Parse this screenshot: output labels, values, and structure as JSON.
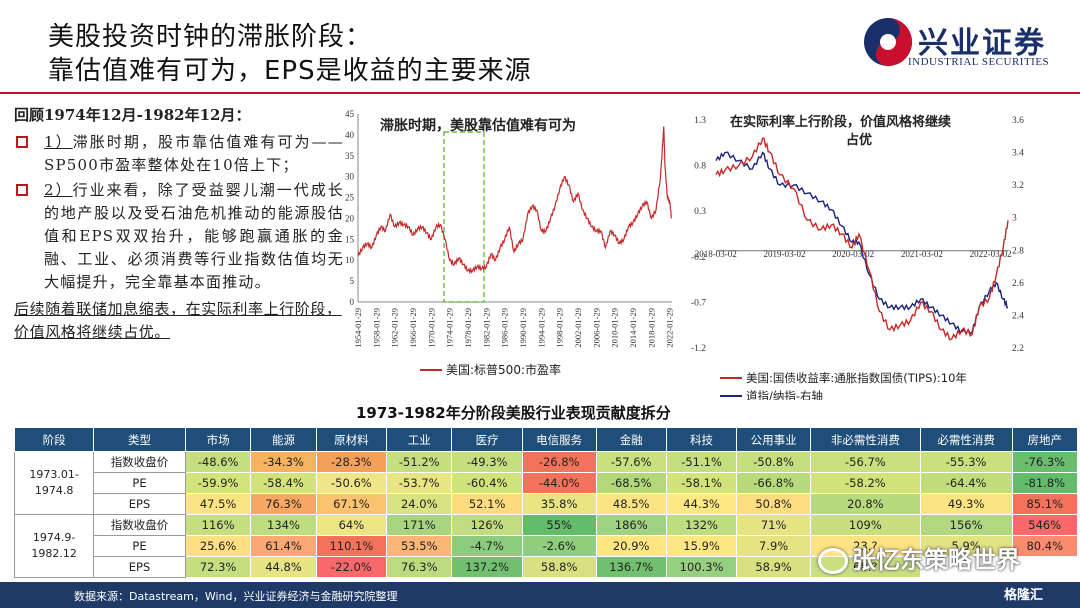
{
  "title": {
    "line1": "美股投资时钟的滞胀阶段：",
    "line2": "靠估值难有可为，EPS是收益的主要来源"
  },
  "logo": {
    "cn": "兴业证券",
    "en": "INDUSTRIAL SECURITIES"
  },
  "left": {
    "heading": "回顾1974年12月-1982年12月：",
    "bullets": [
      {
        "num": "1）",
        "text": "滞胀时期，股市靠估值难有可为——SP500市盈率整体处在10倍上下；"
      },
      {
        "num": "2）",
        "text": "行业来看，除了受益婴儿潮一代成长的地产股以及受石油危机推动的能源股估值和EPS双双抬升，能够跑赢通胀的金融、工业、必须消费等行业指数估值均无大幅提升，完全靠基本面推动。"
      }
    ],
    "followup": "后续随着联储加息缩表，在实际利率上行阶段，价值风格将继续占优。"
  },
  "chart1_text": {
    "annotation": "滞胀时期，美股靠估值难有可为",
    "legend": "美国:标普500:市盈率"
  },
  "chart2_text": {
    "annotation_l1": "在实际利率上行阶段，价值风格将继续",
    "annotation_l2": "占优",
    "legend1": "美国:国债收益率:通胀指数国债(TIPS):10年",
    "legend2": "道指/纳指-右轴"
  },
  "chart_data": [
    {
      "type": "line",
      "title": "",
      "series": [
        {
          "name": "美国:标普500:市盈率",
          "color": "#c62828"
        }
      ],
      "x_ticks": [
        "1954-01-29",
        "1958-01-29",
        "1962-01-29",
        "1966-01-29",
        "1970-01-29",
        "1974-01-29",
        "1978-01-29",
        "1982-01-29",
        "1986-01-29",
        "1990-01-29",
        "1994-01-29",
        "1998-01-29",
        "2002-01-29",
        "2006-01-29",
        "2010-01-29",
        "2014-01-29",
        "2018-01-29",
        "2022-01-29"
      ],
      "y_ticks": [
        "0",
        "5",
        "10",
        "15",
        "20",
        "25",
        "30",
        "35",
        "40",
        "45"
      ],
      "ylim": [
        0,
        45
      ],
      "highlight_range": [
        "1974-12",
        "1982-12"
      ],
      "points": [
        [
          1954,
          11
        ],
        [
          1955,
          13
        ],
        [
          1956,
          14
        ],
        [
          1957,
          13
        ],
        [
          1958,
          16
        ],
        [
          1959,
          18
        ],
        [
          1960,
          17
        ],
        [
          1961,
          21
        ],
        [
          1962,
          18
        ],
        [
          1963,
          19
        ],
        [
          1964,
          18.5
        ],
        [
          1965,
          18
        ],
        [
          1966,
          16
        ],
        [
          1967,
          17.5
        ],
        [
          1968,
          18
        ],
        [
          1969,
          16.5
        ],
        [
          1970,
          15
        ],
        [
          1971,
          18
        ],
        [
          1972,
          18.5
        ],
        [
          1973,
          15
        ],
        [
          1974,
          10
        ],
        [
          1975,
          9
        ],
        [
          1976,
          10.5
        ],
        [
          1977,
          9
        ],
        [
          1978,
          7.5
        ],
        [
          1979,
          7.5
        ],
        [
          1980,
          8.5
        ],
        [
          1981,
          8
        ],
        [
          1982,
          8.5
        ],
        [
          1983,
          11.5
        ],
        [
          1984,
          10
        ],
        [
          1985,
          13
        ],
        [
          1986,
          15
        ],
        [
          1987,
          18
        ],
        [
          1988,
          12
        ],
        [
          1989,
          14
        ],
        [
          1990,
          15
        ],
        [
          1991,
          21
        ],
        [
          1992,
          23
        ],
        [
          1993,
          22
        ],
        [
          1994,
          17
        ],
        [
          1995,
          17
        ],
        [
          1996,
          20
        ],
        [
          1997,
          23
        ],
        [
          1998,
          27
        ],
        [
          1999,
          30
        ],
        [
          2000,
          28
        ],
        [
          2001,
          24
        ],
        [
          2002,
          26
        ],
        [
          2003,
          22
        ],
        [
          2004,
          20
        ],
        [
          2005,
          18
        ],
        [
          2006,
          17
        ],
        [
          2007,
          17
        ],
        [
          2008,
          13
        ],
        [
          2009,
          17
        ],
        [
          2010,
          16
        ],
        [
          2011,
          14
        ],
        [
          2012,
          15
        ],
        [
          2013,
          18
        ],
        [
          2014,
          19
        ],
        [
          2015,
          21
        ],
        [
          2016,
          23
        ],
        [
          2017,
          24
        ],
        [
          2018,
          20
        ],
        [
          2019,
          22
        ],
        [
          2020,
          30
        ],
        [
          2020.7,
          42
        ],
        [
          2021,
          32
        ],
        [
          2021.5,
          25
        ],
        [
          2022,
          24
        ],
        [
          2022.4,
          20
        ]
      ]
    },
    {
      "type": "line",
      "title": "",
      "series": [
        {
          "name": "美国:国债收益率:通胀指数国债(TIPS):10年",
          "axis": "left",
          "color": "#c62828"
        },
        {
          "name": "道指/纳指-右轴",
          "axis": "right",
          "color": "#1a237e"
        }
      ],
      "x_ticks": [
        "2018-03-02",
        "2019-03-02",
        "2020-03-02",
        "2021-03-02",
        "2022-03-02"
      ],
      "y_left_ticks": [
        "1.3",
        "0.8",
        "0.3",
        "-0.2",
        "-0.7",
        "-1.2"
      ],
      "y_right_ticks": [
        "3.6",
        "3.4",
        "3.2",
        "3",
        "2.8",
        "2.6",
        "2.4",
        "2.2"
      ],
      "ylim_left": [
        -1.2,
        1.3
      ],
      "ylim_right": [
        2.2,
        3.6
      ],
      "points_left": [
        [
          2018.17,
          0.7
        ],
        [
          2018.3,
          0.75
        ],
        [
          2018.5,
          0.8
        ],
        [
          2018.7,
          0.9
        ],
        [
          2018.85,
          1.1
        ],
        [
          2018.95,
          0.95
        ],
        [
          2019.1,
          0.7
        ],
        [
          2019.3,
          0.55
        ],
        [
          2019.5,
          0.2
        ],
        [
          2019.7,
          0.1
        ],
        [
          2019.85,
          0.15
        ],
        [
          2020.0,
          0.05
        ],
        [
          2020.15,
          -0.1
        ],
        [
          2020.25,
          0.05
        ],
        [
          2020.4,
          -0.35
        ],
        [
          2020.55,
          -0.8
        ],
        [
          2020.7,
          -1.0
        ],
        [
          2020.85,
          -0.95
        ],
        [
          2021.0,
          -0.9
        ],
        [
          2021.15,
          -0.7
        ],
        [
          2021.3,
          -0.8
        ],
        [
          2021.45,
          -1.0
        ],
        [
          2021.6,
          -1.1
        ],
        [
          2021.75,
          -1.0
        ],
        [
          2021.9,
          -1.05
        ],
        [
          2022.0,
          -0.75
        ],
        [
          2022.15,
          -0.65
        ],
        [
          2022.25,
          -0.4
        ],
        [
          2022.35,
          -0.1
        ],
        [
          2022.42,
          0.2
        ]
      ],
      "points_right": [
        [
          2018.17,
          3.35
        ],
        [
          2018.3,
          3.4
        ],
        [
          2018.5,
          3.35
        ],
        [
          2018.7,
          3.3
        ],
        [
          2018.85,
          3.4
        ],
        [
          2018.95,
          3.3
        ],
        [
          2019.1,
          3.2
        ],
        [
          2019.3,
          3.2
        ],
        [
          2019.5,
          3.15
        ],
        [
          2019.7,
          3.1
        ],
        [
          2019.85,
          3.05
        ],
        [
          2020.0,
          2.95
        ],
        [
          2020.15,
          2.85
        ],
        [
          2020.25,
          2.85
        ],
        [
          2020.4,
          2.65
        ],
        [
          2020.55,
          2.5
        ],
        [
          2020.7,
          2.45
        ],
        [
          2020.85,
          2.45
        ],
        [
          2021.0,
          2.45
        ],
        [
          2021.15,
          2.5
        ],
        [
          2021.3,
          2.45
        ],
        [
          2021.45,
          2.4
        ],
        [
          2021.6,
          2.35
        ],
        [
          2021.75,
          2.3
        ],
        [
          2021.9,
          2.3
        ],
        [
          2022.0,
          2.45
        ],
        [
          2022.15,
          2.55
        ],
        [
          2022.25,
          2.6
        ],
        [
          2022.35,
          2.5
        ],
        [
          2022.42,
          2.45
        ]
      ]
    }
  ],
  "table": {
    "title": "1973-1982年分阶段美股行业表现贡献度拆分",
    "headers": [
      "阶段",
      "类型",
      "市场",
      "能源",
      "原材料",
      "工业",
      "医疗",
      "电信服务",
      "金融",
      "科技",
      "公用事业",
      "非必需性消费",
      "必需性消费",
      "房地产"
    ],
    "stages": [
      "1973.01-\n1974.8",
      "1974.9-\n1982.12"
    ],
    "rows": [
      {
        "type": "指数收盘价",
        "values": [
          "-48.6%",
          "-34.3%",
          "-28.3%",
          "-51.2%",
          "-49.3%",
          "-26.8%",
          "-57.6%",
          "-51.1%",
          "-50.8%",
          "-56.7%",
          "-55.3%",
          "-76.3%"
        ],
        "colors": [
          "#c5df80",
          "#f6b25c",
          "#f5a05a",
          "#c5df80",
          "#c5df80",
          "#f3725c",
          "#c8e07e",
          "#c5df80",
          "#c5df80",
          "#c8e07e",
          "#c9e17d",
          "#69bd6c"
        ]
      },
      {
        "type": "PE",
        "values": [
          "-59.9%",
          "-58.4%",
          "-50.6%",
          "-53.7%",
          "-60.4%",
          "-44.0%",
          "-68.5%",
          "-58.1%",
          "-66.8%",
          "-58.2%",
          "-64.4%",
          "-81.8%"
        ],
        "colors": [
          "#d4e47c",
          "#d2e37c",
          "#f0e588",
          "#e8e584",
          "#d1e37c",
          "#f3725c",
          "#b3d87c",
          "#d2e37c",
          "#b9da7c",
          "#d2e37c",
          "#c1dc7c",
          "#63bb6c"
        ]
      },
      {
        "type": "EPS",
        "values": [
          "47.5%",
          "76.3%",
          "67.1%",
          "24.0%",
          "52.1%",
          "35.8%",
          "48.5%",
          "44.3%",
          "50.8%",
          "20.8%",
          "49.3%",
          "85.1%"
        ],
        "colors": [
          "#fde483",
          "#f8a863",
          "#fbc26f",
          "#d8e381",
          "#fddb7f",
          "#eae582",
          "#fde483",
          "#fee883",
          "#fddd80",
          "#b8da7e",
          "#fde483",
          "#f3725c"
        ]
      },
      {
        "type": "指数收盘价",
        "values": [
          "116%",
          "134%",
          "64%",
          "171%",
          "126%",
          "55%",
          "186%",
          "132%",
          "71%",
          "109%",
          "156%",
          "546%"
        ],
        "colors": [
          "#c5df80",
          "#bedd7f",
          "#ede583",
          "#a8d480",
          "#c1dd7f",
          "#63bb6c",
          "#9fd281",
          "#bedd7f",
          "#e5e482",
          "#c8df80",
          "#b1d780",
          "#f8696b"
        ]
      },
      {
        "type": "PE",
        "values": [
          "25.6%",
          "61.4%",
          "110.1%",
          "53.5%",
          "-4.7%",
          "-2.6%",
          "20.9%",
          "15.9%",
          "7.9%",
          "23.?",
          "5.9%",
          "80.4%"
        ],
        "colors": [
          "#fedf81",
          "#fba874",
          "#f3725c",
          "#fbb577",
          "#8bcc7f",
          "#8fcd7f",
          "#ffe683",
          "#fee682",
          "#e6e482",
          "#fee383",
          "#e2e382",
          "#f98c6f"
        ]
      },
      {
        "type": "EPS",
        "values": [
          "72.3%",
          "44.8%",
          "-22.0%",
          "76.3%",
          "137.2%",
          "58.8%",
          "136.7%",
          "100.3%",
          "58.9%",
          "68.?",
          "",
          ""
        ],
        "colors": [
          "#c5df80",
          "#e6e483",
          "#f8696b",
          "#bcdb80",
          "#70c06f",
          "#d8e181",
          "#71c06f",
          "#96cf7f",
          "#d8e181",
          "#c9df80",
          "#ffffff",
          "#ffffff"
        ]
      }
    ]
  },
  "footer": {
    "text": "数据来源：Datastream，Wind，兴业证券经济与金融研究院整理"
  },
  "watermark": {
    "text": "张忆东策略世界",
    "badge": "格隆汇"
  }
}
